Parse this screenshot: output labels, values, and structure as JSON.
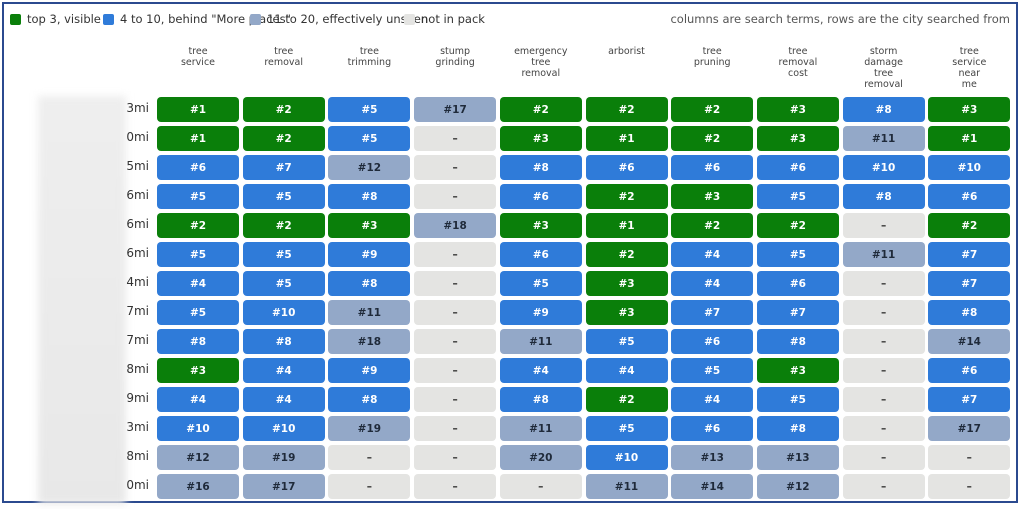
{
  "legend": {
    "items": [
      {
        "label": "top 3, visible",
        "color": "#0a7f0a",
        "text_color": "#ffffff",
        "max": 3
      },
      {
        "label": "4 to 10, behind \"More places\"",
        "color": "#2f7bd9",
        "text_color": "#ffffff",
        "max": 10
      },
      {
        "label": "11 to 20, effectively unseen",
        "color": "#93a8c8",
        "text_color": "#1f2a3a",
        "max": 20
      },
      {
        "label": "not in pack",
        "color": "#e4e4e2",
        "text_color": "#333333"
      }
    ],
    "note": "columns are search terms, rows are the city searched from"
  },
  "table": {
    "columns": [
      "tree\nservice",
      "tree\nremoval",
      "tree\ntrimming",
      "stump\ngrinding",
      "emergency\ntree\nremoval",
      "arborist",
      "tree\npruning",
      "tree\nremoval\ncost",
      "storm\ndamage\ntree\nremoval",
      "tree\nservice\nnear\nme"
    ],
    "row_labels": [
      "3mi",
      "0mi",
      "5mi",
      "6mi",
      "6mi",
      "6mi",
      "4mi",
      "7mi",
      "7mi",
      "8mi",
      "9mi",
      "3mi",
      "8mi",
      "0mi"
    ],
    "rows": [
      [
        "#1",
        "#2",
        "#5",
        "#17",
        "#2",
        "#2",
        "#2",
        "#3",
        "#8",
        "#3"
      ],
      [
        "#1",
        "#2",
        "#5",
        "–",
        "#3",
        "#1",
        "#2",
        "#3",
        "#11",
        "#1"
      ],
      [
        "#6",
        "#7",
        "#12",
        "–",
        "#8",
        "#6",
        "#6",
        "#6",
        "#10",
        "#10"
      ],
      [
        "#5",
        "#5",
        "#8",
        "–",
        "#6",
        "#2",
        "#3",
        "#5",
        "#8",
        "#6"
      ],
      [
        "#2",
        "#2",
        "#3",
        "#18",
        "#3",
        "#1",
        "#2",
        "#2",
        "–",
        "#2"
      ],
      [
        "#5",
        "#5",
        "#9",
        "–",
        "#6",
        "#2",
        "#4",
        "#5",
        "#11",
        "#7"
      ],
      [
        "#4",
        "#5",
        "#8",
        "–",
        "#5",
        "#3",
        "#4",
        "#6",
        "–",
        "#7"
      ],
      [
        "#5",
        "#10",
        "#11",
        "–",
        "#9",
        "#3",
        "#7",
        "#7",
        "–",
        "#8"
      ],
      [
        "#8",
        "#8",
        "#18",
        "–",
        "#11",
        "#5",
        "#6",
        "#8",
        "–",
        "#14"
      ],
      [
        "#3",
        "#4",
        "#9",
        "–",
        "#4",
        "#4",
        "#5",
        "#3",
        "–",
        "#6"
      ],
      [
        "#4",
        "#4",
        "#8",
        "–",
        "#8",
        "#2",
        "#4",
        "#5",
        "–",
        "#7"
      ],
      [
        "#10",
        "#10",
        "#19",
        "–",
        "#11",
        "#5",
        "#6",
        "#8",
        "–",
        "#17"
      ],
      [
        "#12",
        "#19",
        "–",
        "–",
        "#20",
        "#10",
        "#13",
        "#13",
        "–",
        "–"
      ],
      [
        "#16",
        "#17",
        "–",
        "–",
        "–",
        "#11",
        "#14",
        "#12",
        "–",
        "–"
      ]
    ]
  }
}
